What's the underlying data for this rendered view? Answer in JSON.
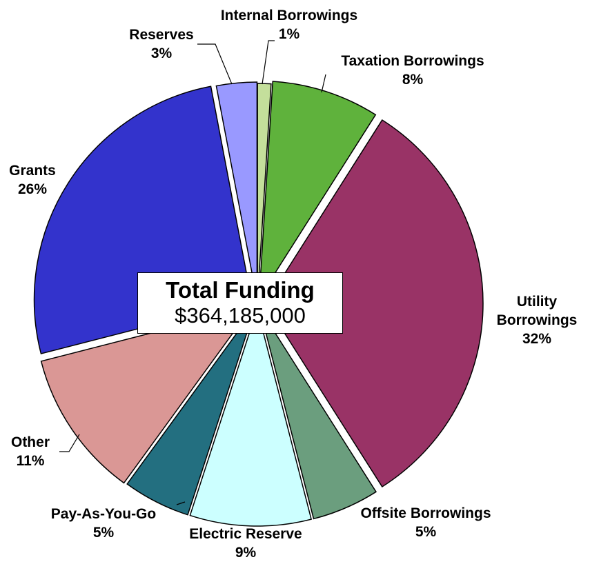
{
  "chart_data": {
    "type": "pie",
    "center_box": {
      "title": "Total Funding",
      "value": "$364,185,000"
    },
    "slices": [
      {
        "name": "Internal Borrowings",
        "label_lines": [
          "Internal Borrowings",
          "1%"
        ],
        "value": 1,
        "color": "#c4df9b"
      },
      {
        "name": "Taxation Borrowings",
        "label_lines": [
          "Taxation Borrowings",
          "8%"
        ],
        "value": 8,
        "color": "#5fb23c"
      },
      {
        "name": "Utility Borrowings",
        "label_lines": [
          "Utility",
          "Borrowings",
          "32%"
        ],
        "value": 32,
        "color": "#993366"
      },
      {
        "name": "Offsite Borrowings",
        "label_lines": [
          "Offsite Borrowings",
          "5%"
        ],
        "value": 5,
        "color": "#6b9e7e"
      },
      {
        "name": "Electric Reserve",
        "label_lines": [
          "Electric Reserve",
          "9%"
        ],
        "value": 9,
        "color": "#ccffff"
      },
      {
        "name": "Pay-As-You-Go",
        "label_lines": [
          "Pay-As-You-Go",
          "5%"
        ],
        "value": 5,
        "color": "#236f80"
      },
      {
        "name": "Other",
        "label_lines": [
          "Other",
          "11%"
        ],
        "value": 11,
        "color": "#da9795"
      },
      {
        "name": "Grants",
        "label_lines": [
          "Grants",
          "26%"
        ],
        "value": 26,
        "color": "#3333cc"
      },
      {
        "name": "Reserves",
        "label_lines": [
          "Reserves",
          "3%"
        ],
        "value": 3,
        "color": "#9999ff"
      }
    ]
  }
}
